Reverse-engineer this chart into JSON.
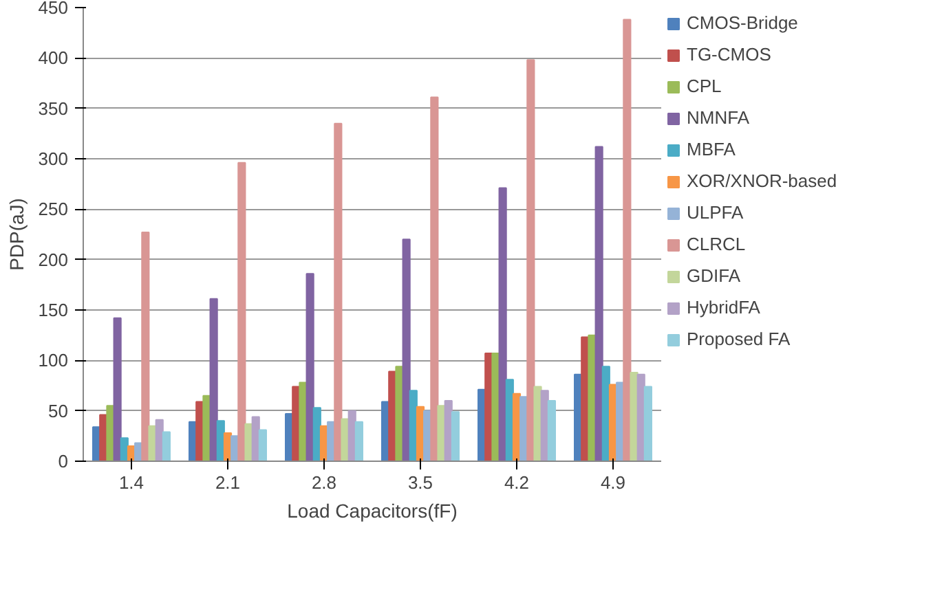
{
  "chart_data": {
    "type": "bar",
    "xlabel": "Load Capacitors(fF)",
    "ylabel": "PDP(aJ)",
    "categories": [
      "1.4",
      "2.1",
      "2.8",
      "3.5",
      "4.2",
      "4.9"
    ],
    "ylim": [
      0,
      450
    ],
    "yticks": [
      0,
      50,
      100,
      150,
      200,
      250,
      300,
      350,
      400,
      450
    ],
    "grid": "y",
    "legend": "right",
    "series": [
      {
        "name": "CMOS-Bridge",
        "color": "#4f81bd",
        "values": [
          34,
          39,
          47,
          59,
          71,
          86
        ]
      },
      {
        "name": "TG-CMOS",
        "color": "#c0504d",
        "values": [
          46,
          59,
          74,
          89,
          107,
          123
        ]
      },
      {
        "name": "CPL",
        "color": "#9bbb59",
        "values": [
          55,
          65,
          78,
          94,
          107,
          125
        ]
      },
      {
        "name": "NMNFA",
        "color": "#8064a2",
        "values": [
          142,
          161,
          186,
          220,
          271,
          312
        ]
      },
      {
        "name": "MBFA",
        "color": "#4bacc6",
        "values": [
          23,
          40,
          53,
          70,
          81,
          94
        ]
      },
      {
        "name": "XOR/XNOR-based",
        "color": "#f79646",
        "values": [
          15,
          28,
          35,
          54,
          67,
          76
        ]
      },
      {
        "name": "ULPFA",
        "color": "#95b3d7",
        "values": [
          18,
          25,
          39,
          50,
          64,
          78
        ]
      },
      {
        "name": "CLRCL",
        "color": "#d99694",
        "values": [
          227,
          296,
          335,
          361,
          398,
          438
        ]
      },
      {
        "name": "GDIFA",
        "color": "#c3d69b",
        "values": [
          35,
          37,
          42,
          55,
          74,
          88
        ]
      },
      {
        "name": "HybridFA",
        "color": "#b3a2c7",
        "values": [
          41,
          44,
          50,
          60,
          70,
          86
        ]
      },
      {
        "name": "Proposed FA",
        "color": "#93cddd",
        "values": [
          29,
          31,
          39,
          49,
          60,
          74
        ]
      }
    ]
  }
}
